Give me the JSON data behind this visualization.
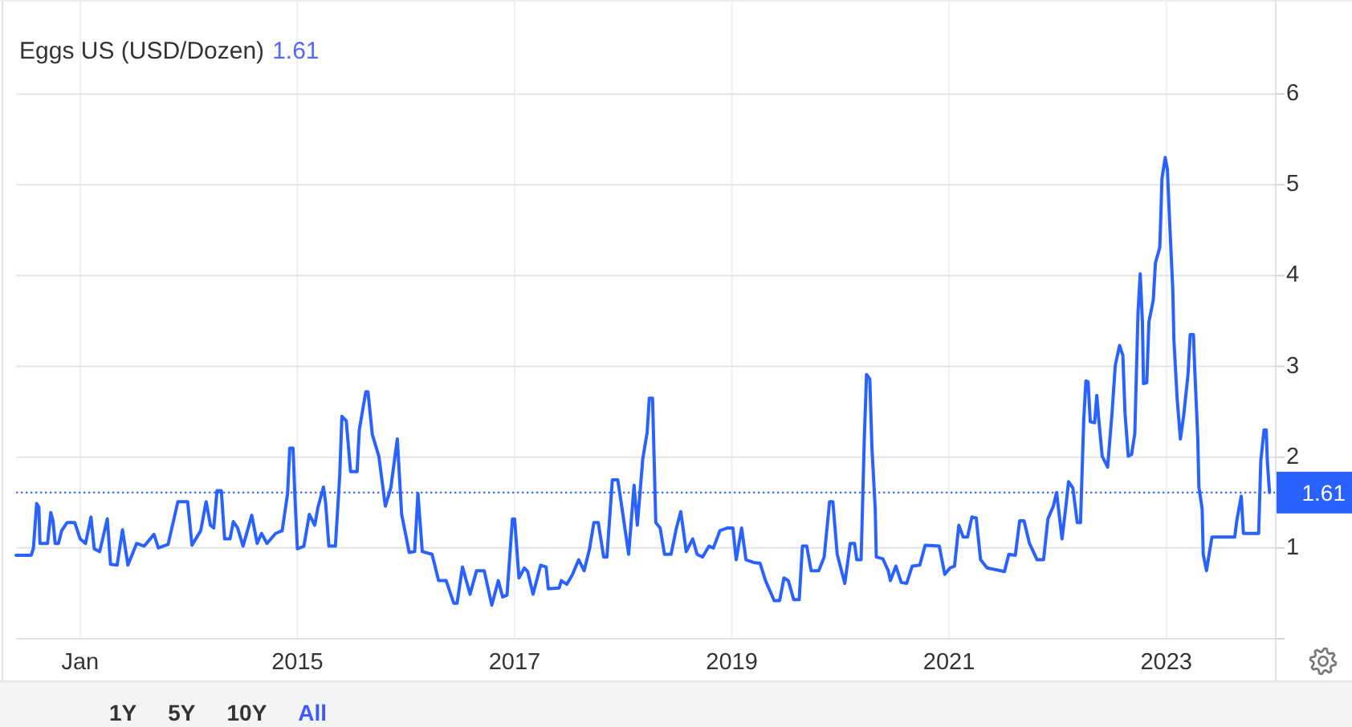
{
  "chart_data": {
    "type": "line",
    "title": "Eggs US (USD/Dozen)",
    "subtitle": "1.61",
    "x": [
      2012.41,
      2012.55,
      2012.57,
      2012.6,
      2012.62,
      2012.63,
      2012.7,
      2012.73,
      2012.75,
      2012.77,
      2012.8,
      2012.83,
      2012.88,
      2012.95,
      2013.0,
      2013.05,
      2013.1,
      2013.13,
      2013.18,
      2013.25,
      2013.28,
      2013.34,
      2013.39,
      2013.44,
      2013.52,
      2013.59,
      2013.68,
      2013.72,
      2013.81,
      2013.9,
      2013.99,
      2014.03,
      2014.11,
      2014.16,
      2014.2,
      2014.23,
      2014.26,
      2014.3,
      2014.33,
      2014.38,
      2014.41,
      2014.45,
      2014.5,
      2014.58,
      2014.63,
      2014.67,
      2014.72,
      2014.8,
      2014.86,
      2014.91,
      2014.93,
      2014.96,
      2014.98,
      2015.0,
      2015.06,
      2015.11,
      2015.16,
      2015.19,
      2015.24,
      2015.26,
      2015.29,
      2015.35,
      2015.39,
      2015.41,
      2015.45,
      2015.49,
      2015.55,
      2015.57,
      2015.63,
      2015.65,
      2015.69,
      2015.75,
      2015.81,
      2015.86,
      2015.92,
      2015.96,
      2016.03,
      2016.08,
      2016.11,
      2016.15,
      2016.24,
      2016.3,
      2016.37,
      2016.44,
      2016.47,
      2016.52,
      2016.59,
      2016.65,
      2016.72,
      2016.79,
      2016.85,
      2016.89,
      2016.93,
      2016.98,
      2017.0,
      2017.04,
      2017.09,
      2017.12,
      2017.17,
      2017.24,
      2017.29,
      2017.31,
      2017.41,
      2017.43,
      2017.48,
      2017.53,
      2017.59,
      2017.64,
      2017.69,
      2017.73,
      2017.77,
      2017.82,
      2017.85,
      2017.9,
      2017.95,
      2017.98,
      2018.05,
      2018.1,
      2018.13,
      2018.16,
      2018.18,
      2018.22,
      2018.24,
      2018.27,
      2018.3,
      2018.34,
      2018.38,
      2018.44,
      2018.49,
      2018.53,
      2018.58,
      2018.64,
      2018.68,
      2018.73,
      2018.79,
      2018.83,
      2018.89,
      2018.96,
      2019.01,
      2019.04,
      2019.09,
      2019.13,
      2019.2,
      2019.26,
      2019.31,
      2019.39,
      2019.44,
      2019.48,
      2019.52,
      2019.57,
      2019.62,
      2019.65,
      2019.69,
      2019.73,
      2019.8,
      2019.85,
      2019.9,
      2019.93,
      2019.97,
      2020.04,
      2020.09,
      2020.13,
      2020.15,
      2020.19,
      2020.22,
      2020.24,
      2020.27,
      2020.29,
      2020.32,
      2020.33,
      2020.39,
      2020.44,
      2020.46,
      2020.51,
      2020.56,
      2020.61,
      2020.66,
      2020.73,
      2020.78,
      2020.91,
      2020.96,
      2021.01,
      2021.05,
      2021.09,
      2021.13,
      2021.17,
      2021.21,
      2021.25,
      2021.29,
      2021.35,
      2021.51,
      2021.55,
      2021.61,
      2021.65,
      2021.69,
      2021.74,
      2021.81,
      2021.87,
      2021.91,
      2021.96,
      2021.99,
      2022.04,
      2022.07,
      2022.1,
      2022.14,
      2022.18,
      2022.21,
      2022.24,
      2022.26,
      2022.28,
      2022.3,
      2022.34,
      2022.36,
      2022.38,
      2022.41,
      2022.46,
      2022.5,
      2022.53,
      2022.57,
      2022.6,
      2022.62,
      2022.65,
      2022.68,
      2022.71,
      2022.74,
      2022.76,
      2022.78,
      2022.79,
      2022.82,
      2022.84,
      2022.88,
      2022.9,
      2022.94,
      2022.95,
      2022.96,
      2022.99,
      2023.01,
      2023.03,
      2023.06,
      2023.07,
      2023.1,
      2023.13,
      2023.16,
      2023.2,
      2023.22,
      2023.25,
      2023.26,
      2023.29,
      2023.3,
      2023.33,
      2023.34,
      2023.37,
      2023.39,
      2023.42,
      2023.63,
      2023.65,
      2023.69,
      2023.71,
      2023.85,
      2023.87,
      2023.9,
      2023.92,
      2023.93,
      2023.95
    ],
    "series": [
      {
        "color": "#2962ff",
        "values": [
          0.92,
          0.92,
          1.0,
          1.49,
          1.45,
          1.05,
          1.05,
          1.39,
          1.3,
          1.05,
          1.05,
          1.19,
          1.28,
          1.28,
          1.1,
          1.05,
          1.34,
          0.99,
          0.96,
          1.32,
          0.82,
          0.81,
          1.2,
          0.81,
          1.05,
          1.02,
          1.15,
          1.0,
          1.04,
          1.51,
          1.51,
          1.03,
          1.19,
          1.51,
          1.25,
          1.22,
          1.63,
          1.63,
          1.1,
          1.1,
          1.29,
          1.22,
          1.02,
          1.36,
          1.05,
          1.16,
          1.05,
          1.16,
          1.19,
          1.6,
          2.1,
          2.1,
          1.5,
          0.99,
          1.02,
          1.37,
          1.25,
          1.45,
          1.67,
          1.5,
          1.02,
          1.02,
          1.8,
          2.45,
          2.4,
          1.84,
          1.84,
          2.3,
          2.72,
          2.72,
          2.25,
          2.01,
          1.46,
          1.66,
          2.2,
          1.37,
          0.95,
          0.96,
          1.6,
          0.96,
          0.93,
          0.64,
          0.64,
          0.39,
          0.39,
          0.79,
          0.49,
          0.75,
          0.75,
          0.37,
          0.64,
          0.46,
          0.48,
          1.32,
          1.32,
          0.67,
          0.78,
          0.74,
          0.49,
          0.81,
          0.79,
          0.55,
          0.56,
          0.64,
          0.6,
          0.7,
          0.87,
          0.75,
          0.99,
          1.28,
          1.28,
          0.9,
          0.9,
          1.75,
          1.75,
          1.51,
          0.93,
          1.69,
          1.25,
          1.69,
          1.98,
          2.27,
          2.65,
          2.65,
          1.28,
          1.22,
          0.93,
          0.93,
          1.22,
          1.4,
          0.96,
          1.1,
          0.93,
          0.9,
          1.02,
          1.0,
          1.19,
          1.22,
          1.22,
          0.87,
          1.22,
          0.87,
          0.84,
          0.83,
          0.64,
          0.42,
          0.42,
          0.67,
          0.64,
          0.43,
          0.43,
          1.02,
          1.02,
          0.75,
          0.75,
          0.9,
          1.51,
          1.51,
          0.93,
          0.61,
          1.05,
          1.05,
          0.87,
          0.87,
          2.22,
          2.91,
          2.86,
          2.1,
          1.43,
          0.9,
          0.88,
          0.75,
          0.64,
          0.8,
          0.62,
          0.61,
          0.8,
          0.81,
          1.03,
          1.02,
          0.71,
          0.78,
          0.8,
          1.25,
          1.12,
          1.12,
          1.34,
          1.33,
          0.87,
          0.78,
          0.74,
          0.93,
          0.92,
          1.3,
          1.3,
          1.05,
          0.87,
          0.87,
          1.32,
          1.46,
          1.61,
          1.1,
          1.4,
          1.73,
          1.66,
          1.28,
          1.28,
          2.42,
          2.84,
          2.83,
          2.39,
          2.38,
          2.68,
          2.39,
          2.01,
          1.89,
          2.48,
          3.01,
          3.23,
          3.12,
          2.48,
          2.01,
          2.03,
          2.26,
          3.61,
          4.02,
          3.49,
          2.81,
          2.82,
          3.49,
          3.73,
          4.14,
          4.31,
          4.67,
          5.07,
          5.3,
          5.17,
          4.61,
          3.84,
          3.29,
          2.64,
          2.2,
          2.46,
          2.91,
          3.35,
          3.35,
          3.02,
          2.2,
          1.67,
          1.43,
          0.93,
          0.75,
          0.9,
          1.12,
          1.12,
          1.31,
          1.57,
          1.16,
          1.16,
          1.96,
          2.3,
          2.3,
          1.96,
          1.61
        ]
      }
    ],
    "xlim": [
      2012.41,
      2024.0
    ],
    "ylim": [
      0,
      7
    ],
    "xticks": [
      {
        "value": 2013,
        "label": "Jan"
      },
      2015,
      2017,
      2019,
      2021,
      2023
    ],
    "yticks": [
      {
        "value": 0,
        "label": null
      },
      1,
      2,
      3,
      4,
      5,
      6
    ],
    "grid": true,
    "ref_lines": [
      {
        "axis": "y",
        "value": 1.61,
        "label": "1.61",
        "color": "#2962ff",
        "line_style": "dotted"
      }
    ],
    "annotations": [
      "1Y",
      "5Y",
      "10Y",
      "All"
    ]
  }
}
